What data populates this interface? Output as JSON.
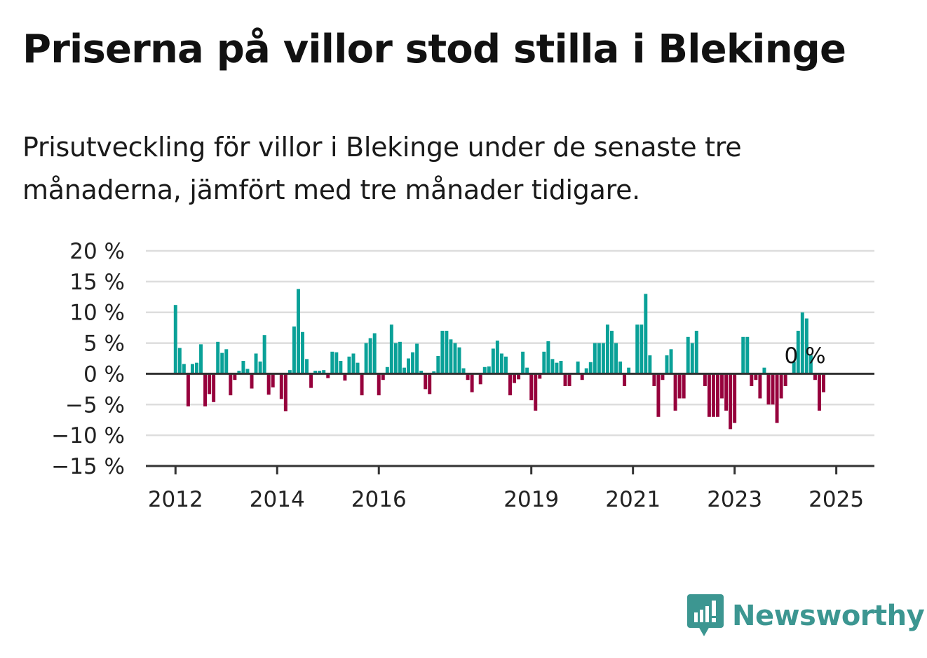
{
  "title": "Priserna på villor stod stilla i Blekinge",
  "subtitle": "Prisutveckling för villor i Blekinge under de senaste tre månaderna, jämfört med tre månader tidigare.",
  "brand": {
    "name": "Newsworthy",
    "icon": "newsworthy-logo-icon"
  },
  "colors": {
    "positive": "#0aa198",
    "negative": "#96003c",
    "grid": "#dddddd",
    "axis": "#333333",
    "brand": "#3c9691"
  },
  "chart_data": {
    "type": "bar",
    "title": "Priserna på villor stod stilla i Blekinge",
    "subtitle": "Prisutveckling för villor i Blekinge under de senaste tre månaderna, jämfört med tre månader tidigare.",
    "xlabel": "",
    "ylabel": "",
    "x_start": "2012-01",
    "x_end": "2024-12",
    "x_unit": "month",
    "xlim": [
      "2011-06",
      "2025-10"
    ],
    "ylim": [
      -15,
      20
    ],
    "y_ticks": [
      20,
      15,
      10,
      5,
      0,
      -5,
      -10,
      -15
    ],
    "y_tick_labels": [
      "20 %",
      "15 %",
      "10 %",
      "5 %",
      "0 %",
      "−5 %",
      "−10 %",
      "−15 %"
    ],
    "x_ticks": [
      "2012",
      "2014",
      "2016",
      "2019",
      "2021",
      "2023",
      "2025"
    ],
    "grid": true,
    "last_value_label": "0 %",
    "values": [
      11.2,
      4.2,
      1.6,
      -5.3,
      1.6,
      1.8,
      4.8,
      -5.3,
      -3.3,
      -4.6,
      5.2,
      3.4,
      4.0,
      -3.5,
      -1.0,
      0.5,
      2.1,
      0.8,
      -2.4,
      3.3,
      2.0,
      6.3,
      -3.4,
      -2.2,
      -0.1,
      -4.1,
      -6.1,
      0.6,
      7.7,
      13.8,
      6.8,
      2.4,
      -2.3,
      0.5,
      0.5,
      0.6,
      -0.7,
      3.6,
      3.5,
      2.1,
      -1.1,
      2.8,
      3.3,
      1.8,
      -3.5,
      5.0,
      5.8,
      6.6,
      -3.5,
      -1.0,
      1.1,
      8.0,
      5.0,
      5.2,
      1.0,
      2.5,
      3.5,
      4.9,
      0.5,
      -2.5,
      -3.3,
      0.4,
      2.9,
      7.0,
      7.0,
      5.6,
      5.0,
      4.3,
      0.9,
      -1.0,
      -3.0,
      0.0,
      -1.7,
      1.1,
      1.2,
      4.1,
      5.4,
      3.3,
      2.8,
      -3.5,
      -1.5,
      -0.9,
      3.6,
      1.0,
      -4.3,
      -6.0,
      -0.8,
      3.6,
      5.3,
      2.4,
      1.8,
      2.1,
      -2.0,
      -2.0,
      0.0,
      2.0,
      -1.0,
      0.9,
      1.9,
      5.0,
      5.0,
      5.0,
      8.0,
      7.0,
      5.0,
      2.0,
      -2.0,
      1.0,
      0.0,
      8.0,
      8.0,
      13.0,
      3.0,
      -2.0,
      -7.0,
      -1.0,
      3.0,
      4.0,
      -6.0,
      -4.0,
      -4.0,
      6.0,
      5.0,
      7.0,
      0.0,
      -2.0,
      -7.0,
      -7.0,
      -7.0,
      -4.0,
      -6.0,
      -9.0,
      -8.0,
      0.0,
      6.0,
      6.0,
      -2.0,
      -1.0,
      -4.0,
      1.0,
      -5.0,
      -5.0,
      -8.0,
      -4.0,
      -2.0,
      0.0,
      2.0,
      7.0,
      10.0,
      9.0,
      3.0,
      -1.0,
      -6.0,
      -3.0,
      0.0
    ]
  }
}
